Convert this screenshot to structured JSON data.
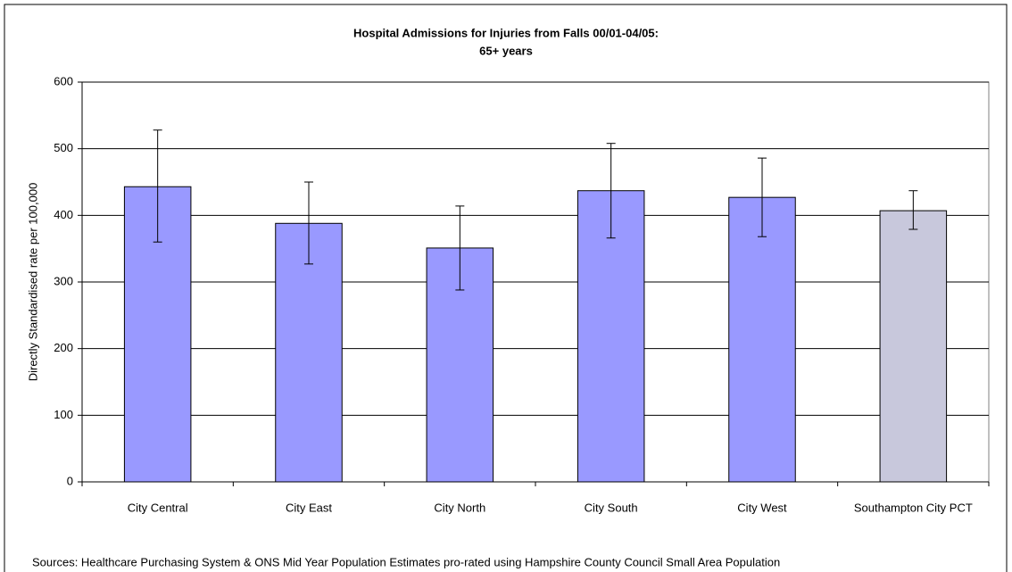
{
  "chart_data": {
    "type": "bar",
    "title": "Hospital Admissions for Injuries from Falls 00/01-04/05:",
    "subtitle": "65+ years",
    "y_label": "Directly Standardised rate per 100,000",
    "source": "Sources: Healthcare Purchasing System & ONS Mid Year Population Estimates pro-rated using Hampshire County Council Small Area Population",
    "categories": [
      "City Central",
      "City East",
      "City North",
      "City South",
      "City West",
      "Southampton City PCT"
    ],
    "values": [
      443,
      388,
      351,
      437,
      427,
      407
    ],
    "upper": [
      528,
      450,
      414,
      508,
      486,
      437
    ],
    "lower": [
      360,
      327,
      288,
      366,
      368,
      379
    ],
    "colors": [
      "#9999ff",
      "#9999ff",
      "#9999ff",
      "#9999ff",
      "#9999ff",
      "#c8c8dc"
    ],
    "ylim": [
      0,
      600
    ],
    "yticks": [
      0,
      100,
      200,
      300,
      400,
      500,
      600
    ],
    "grid": true
  }
}
